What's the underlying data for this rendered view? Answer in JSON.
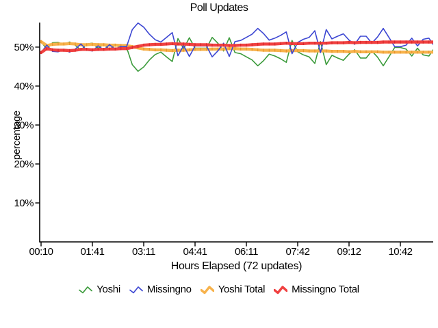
{
  "title": "Poll Updates",
  "chart_data": {
    "type": "line",
    "title": "Poll Updates",
    "xlabel": "Hours Elapsed (72 updates)",
    "ylabel": "percentage",
    "x_tick_labels": [
      "00:10",
      "01:41",
      "03:11",
      "04:41",
      "06:11",
      "07:42",
      "09:12",
      "10:42"
    ],
    "x_tick_indices": [
      0,
      9,
      18,
      27,
      36,
      45,
      54,
      63
    ],
    "y_ticks": [
      10,
      20,
      30,
      40,
      50
    ],
    "y_tick_suffix": "%",
    "ylim": [
      0,
      56.3
    ],
    "num_points": 72,
    "grid": false,
    "legend_position": "bottom",
    "background": "#ffffff",
    "axis_color": "#000000",
    "draw_order": [
      0,
      2,
      1,
      3
    ],
    "series": [
      {
        "name": "Yoshi",
        "color": "#3C9B3C",
        "style": "thin",
        "values": [
          51.4,
          49.5,
          51.1,
          51.2,
          50.7,
          51.3,
          50.5,
          49.2,
          50.8,
          51.0,
          49.7,
          50.7,
          49.4,
          50.5,
          49.8,
          49.9,
          45.5,
          43.8,
          44.9,
          46.7,
          48.1,
          48.7,
          47.5,
          46.3,
          52.2,
          49.6,
          52.4,
          49.7,
          49.7,
          49.7,
          52.5,
          51.0,
          49.0,
          52.4,
          48.6,
          48.3,
          47.5,
          46.7,
          45.2,
          46.5,
          48.2,
          47.7,
          47.0,
          46.1,
          51.7,
          48.8,
          48.0,
          47.5,
          45.8,
          51.4,
          45.5,
          47.9,
          47.2,
          46.6,
          48.2,
          49.3,
          47.2,
          47.2,
          49.0,
          47.4,
          45.2,
          47.5,
          49.9,
          49.9,
          49.5,
          47.7,
          49.7,
          48.0,
          47.7,
          49.8,
          49.5,
          50.2
        ]
      },
      {
        "name": "Missingno",
        "color": "#3C46D2",
        "style": "thin",
        "values": [
          48.6,
          50.5,
          48.9,
          48.8,
          49.3,
          48.7,
          49.5,
          50.8,
          49.2,
          49.0,
          50.3,
          49.3,
          50.6,
          49.5,
          50.2,
          50.1,
          54.5,
          56.2,
          55.1,
          53.3,
          51.9,
          51.3,
          52.5,
          53.7,
          47.8,
          50.4,
          47.6,
          50.3,
          50.3,
          50.3,
          47.5,
          49.0,
          51.0,
          47.6,
          51.4,
          51.7,
          52.5,
          53.3,
          54.8,
          53.5,
          51.8,
          52.3,
          53.0,
          53.9,
          48.3,
          51.2,
          52.0,
          52.5,
          54.2,
          48.6,
          54.5,
          52.1,
          52.8,
          53.4,
          51.8,
          50.7,
          52.8,
          52.8,
          51.0,
          52.6,
          54.8,
          52.5,
          50.1,
          50.1,
          50.5,
          52.3,
          50.3,
          52.0,
          52.3,
          50.2,
          50.5,
          49.8
        ]
      },
      {
        "name": "Yoshi Total",
        "color": "#F7B24B",
        "color_dark": "#E8962E",
        "style": "thick",
        "values": [
          51.4,
          50.4,
          50.7,
          50.8,
          50.8,
          50.9,
          50.8,
          50.6,
          50.6,
          50.7,
          50.6,
          50.6,
          50.5,
          50.5,
          50.4,
          50.4,
          50.1,
          49.8,
          49.5,
          49.4,
          49.3,
          49.3,
          49.2,
          49.1,
          49.2,
          49.2,
          49.3,
          49.4,
          49.4,
          49.4,
          49.5,
          49.5,
          49.5,
          49.6,
          49.6,
          49.5,
          49.5,
          49.4,
          49.3,
          49.2,
          49.2,
          49.2,
          49.1,
          49.0,
          49.1,
          49.1,
          49.1,
          49.0,
          49.0,
          49.0,
          49.0,
          48.9,
          48.9,
          48.9,
          48.8,
          48.9,
          48.8,
          48.8,
          48.8,
          48.8,
          48.7,
          48.7,
          48.7,
          48.7,
          48.7,
          48.7,
          48.7,
          48.7,
          48.7,
          48.7,
          48.7,
          48.8
        ]
      },
      {
        "name": "Missingno Total",
        "color": "#F04040",
        "color_dark": "#D92B2B",
        "style": "thick",
        "values": [
          48.6,
          49.6,
          49.3,
          49.2,
          49.2,
          49.1,
          49.2,
          49.4,
          49.4,
          49.3,
          49.4,
          49.4,
          49.5,
          49.5,
          49.6,
          49.6,
          49.9,
          50.2,
          50.5,
          50.6,
          50.7,
          50.7,
          50.8,
          50.9,
          50.8,
          50.8,
          50.7,
          50.6,
          50.6,
          50.6,
          50.5,
          50.5,
          50.5,
          50.4,
          50.4,
          50.5,
          50.5,
          50.6,
          50.7,
          50.8,
          50.8,
          50.8,
          50.9,
          51.0,
          50.9,
          50.9,
          50.9,
          51.0,
          51.0,
          51.0,
          51.0,
          51.1,
          51.1,
          51.1,
          51.2,
          51.1,
          51.2,
          51.2,
          51.2,
          51.2,
          51.3,
          51.3,
          51.3,
          51.3,
          51.3,
          51.3,
          51.3,
          51.3,
          51.3,
          51.3,
          51.3,
          51.2
        ]
      }
    ]
  }
}
